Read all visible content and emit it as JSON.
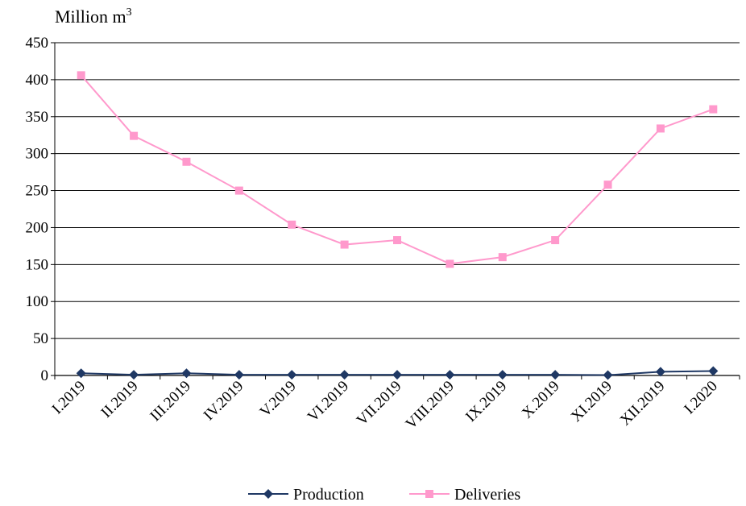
{
  "chart_data": {
    "type": "line",
    "title": "",
    "y_unit_label": "Million m",
    "y_unit_superscript": "3",
    "xlabel": "",
    "ylabel": "",
    "ylim": [
      0,
      450
    ],
    "yticks": [
      0,
      50,
      100,
      150,
      200,
      250,
      300,
      350,
      400,
      450
    ],
    "grid": "horizontal",
    "legend_position": "bottom",
    "categories": [
      "I.2019",
      "II.2019",
      "III.2019",
      "IV.2019",
      "V.2019",
      "VI.2019",
      "VII.2019",
      "VIII.2019",
      "IX.2019",
      "X.2019",
      "XI.2019",
      "XII.2019",
      "I.2020"
    ],
    "series": [
      {
        "name": "Production",
        "color": "#1f3864",
        "marker": "diamond",
        "values": [
          3,
          1,
          3,
          1,
          1,
          1,
          1,
          1,
          1,
          1,
          0.5,
          5,
          6
        ]
      },
      {
        "name": "Deliveries",
        "color": "#ff99cc",
        "marker": "square",
        "values": [
          406,
          324,
          289,
          250,
          204,
          177,
          183,
          151,
          160,
          183,
          258,
          334,
          360
        ]
      }
    ]
  }
}
